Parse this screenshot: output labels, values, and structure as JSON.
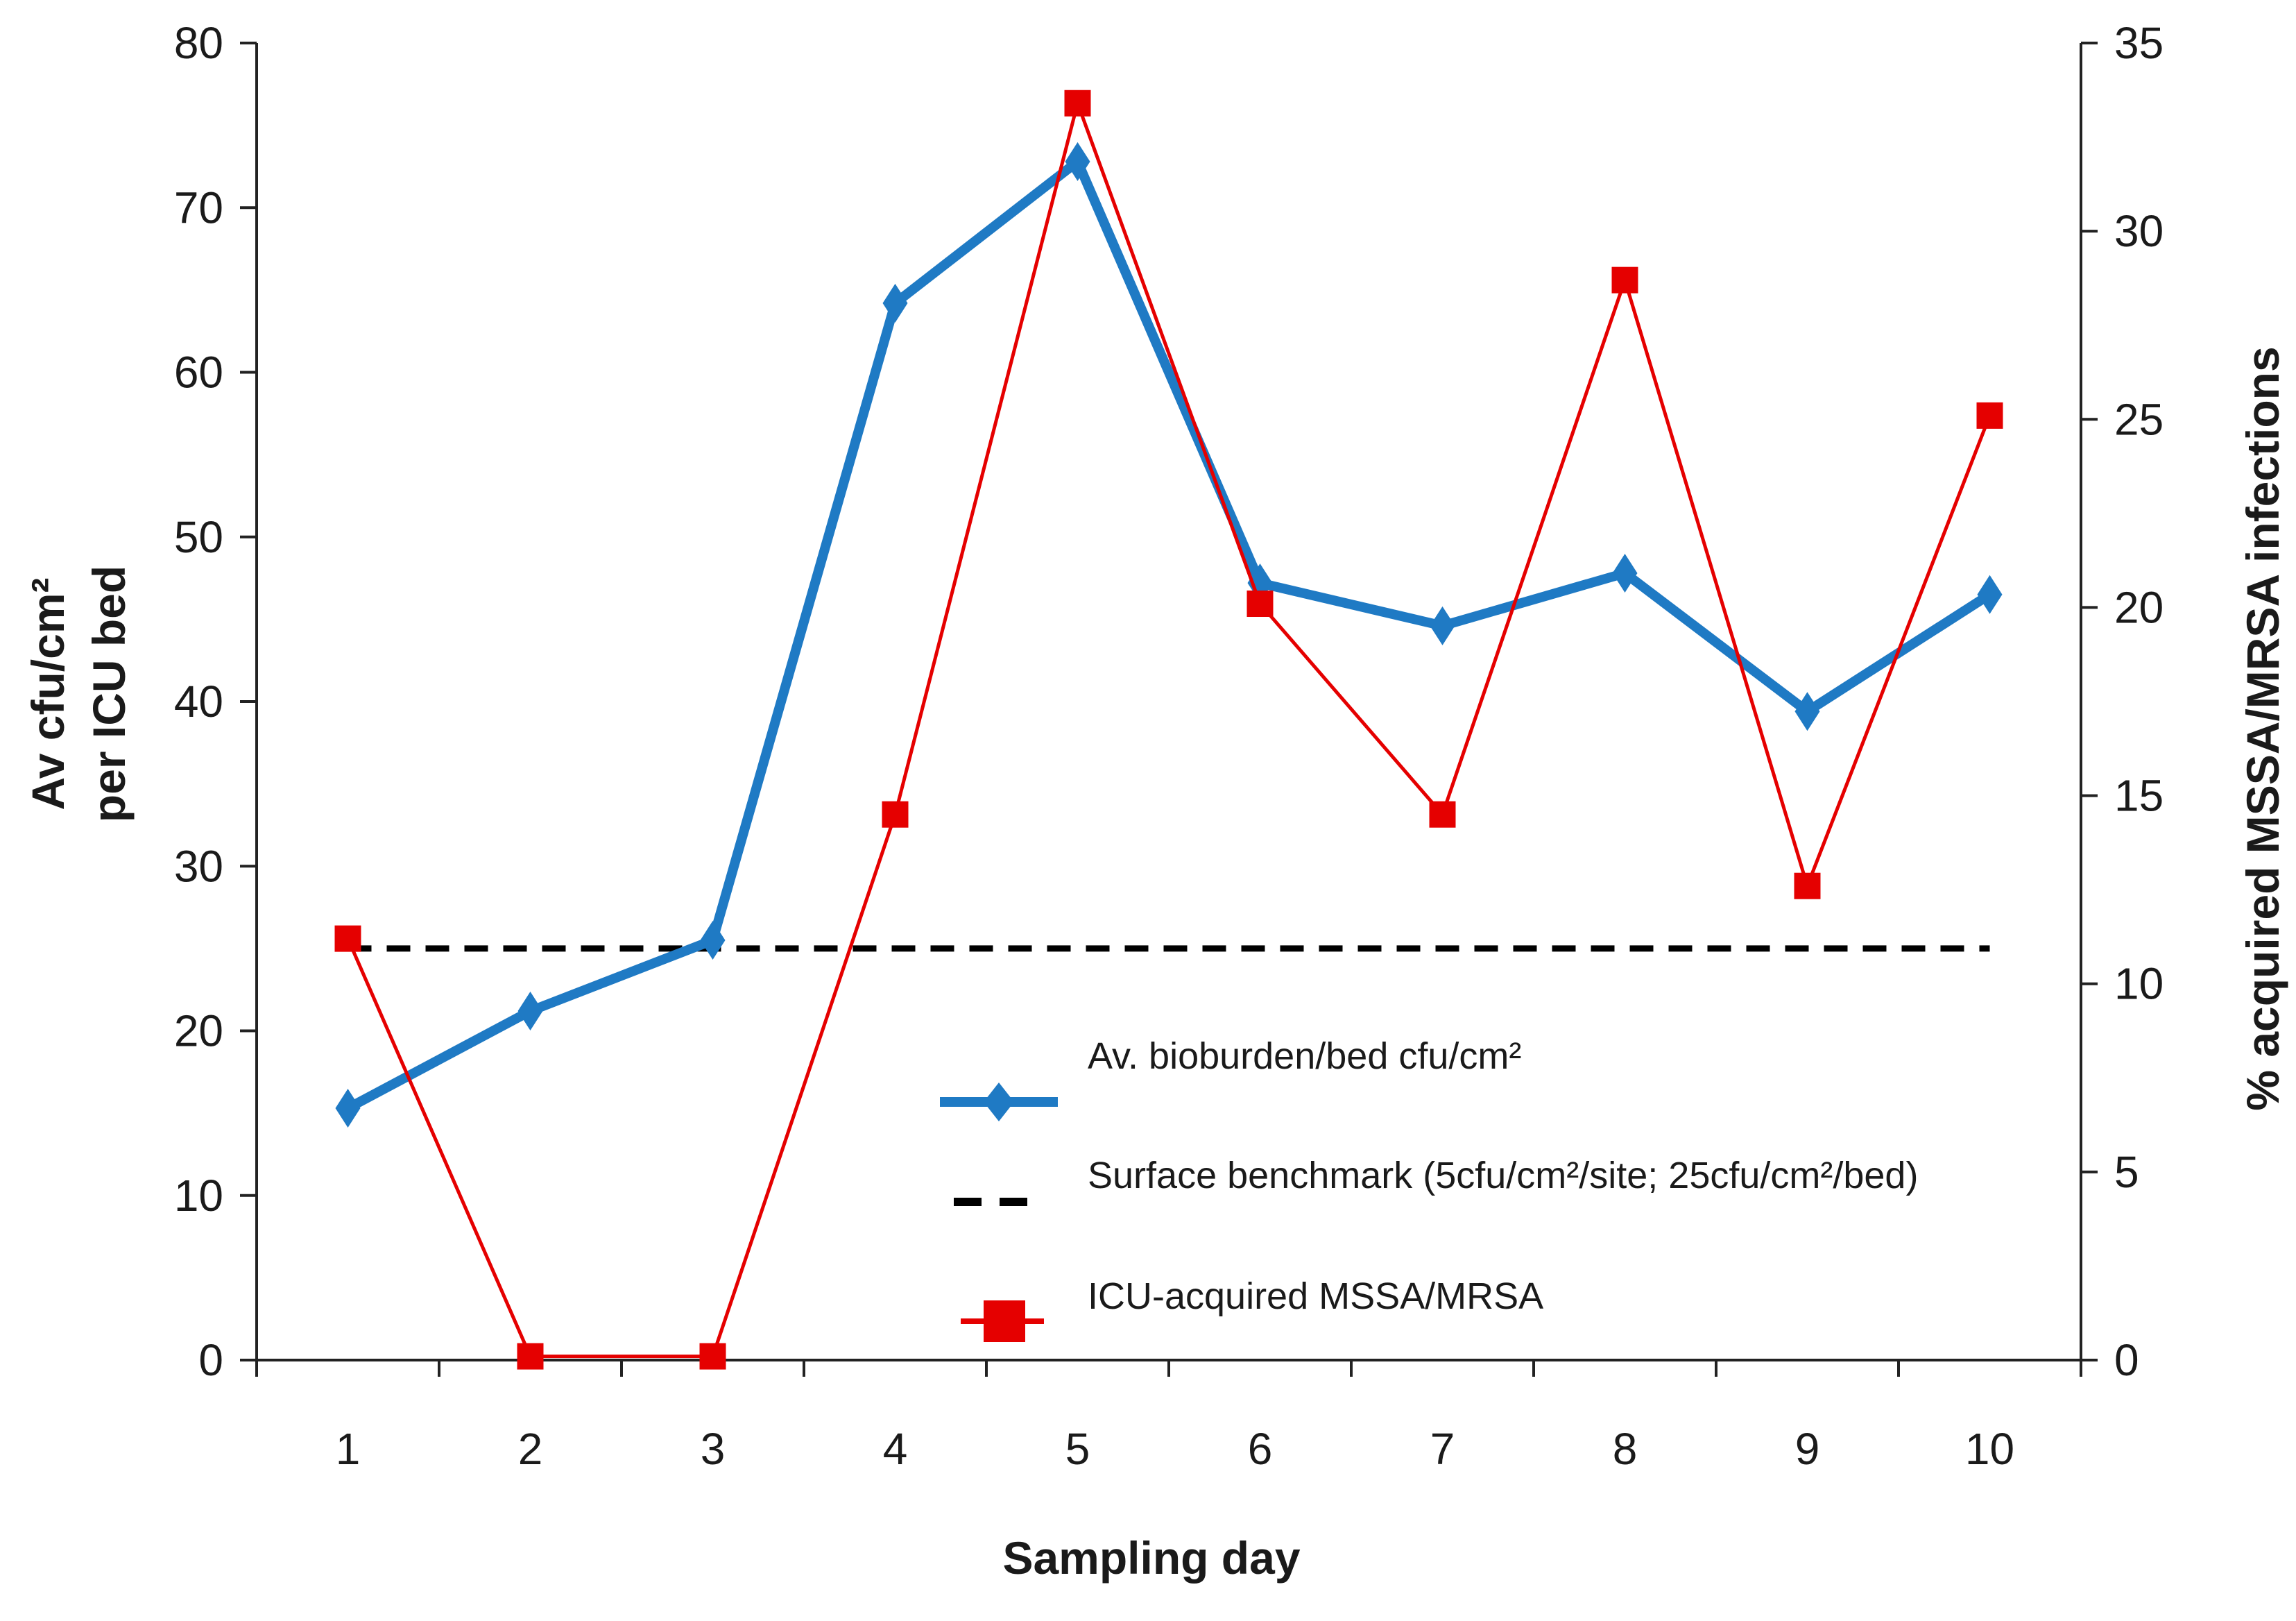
{
  "chart_data": {
    "type": "line",
    "title": "",
    "categories": [
      "1",
      "2",
      "3",
      "4",
      "5",
      "6",
      "7",
      "8",
      "9",
      "10"
    ],
    "xlabel": "Sampling day",
    "ylabel_left_line1": "Av cfu/cm²",
    "ylabel_left_line2": "per ICU bed",
    "ylabel_right": "% acquired MSSA/MRSA infections",
    "ylim_left": [
      0,
      80
    ],
    "yticks_left": [
      0,
      10,
      20,
      30,
      40,
      50,
      60,
      70,
      80
    ],
    "ylim_right": [
      0,
      35
    ],
    "yticks_right": [
      0,
      5,
      10,
      15,
      20,
      25,
      30,
      35
    ],
    "grid": false,
    "legend_position": "center-right",
    "series": [
      {
        "name": "Av. bioburden/bed  cfu/cm²",
        "axis": "left",
        "marker": "diamond",
        "color": "#1f7ac4",
        "values": [
          15.3,
          21.2,
          25.5,
          64.2,
          72.8,
          47.2,
          44.6,
          47.8,
          39.4,
          46.5
        ]
      },
      {
        "name": "Surface benchmark  (5cfu/cm²/site; 25cfu/cm²/bed)",
        "axis": "left",
        "style": "dashed",
        "color": "#000000",
        "values": [
          25,
          25,
          25,
          25,
          25,
          25,
          25,
          25,
          25,
          25
        ]
      },
      {
        "name": "ICU-acquired MSSA/MRSA",
        "axis": "right",
        "marker": "square",
        "color": "#e50000",
        "values": [
          11.2,
          0.1,
          0.1,
          14.5,
          33.4,
          20.1,
          14.5,
          28.7,
          12.6,
          25.1
        ]
      }
    ]
  }
}
